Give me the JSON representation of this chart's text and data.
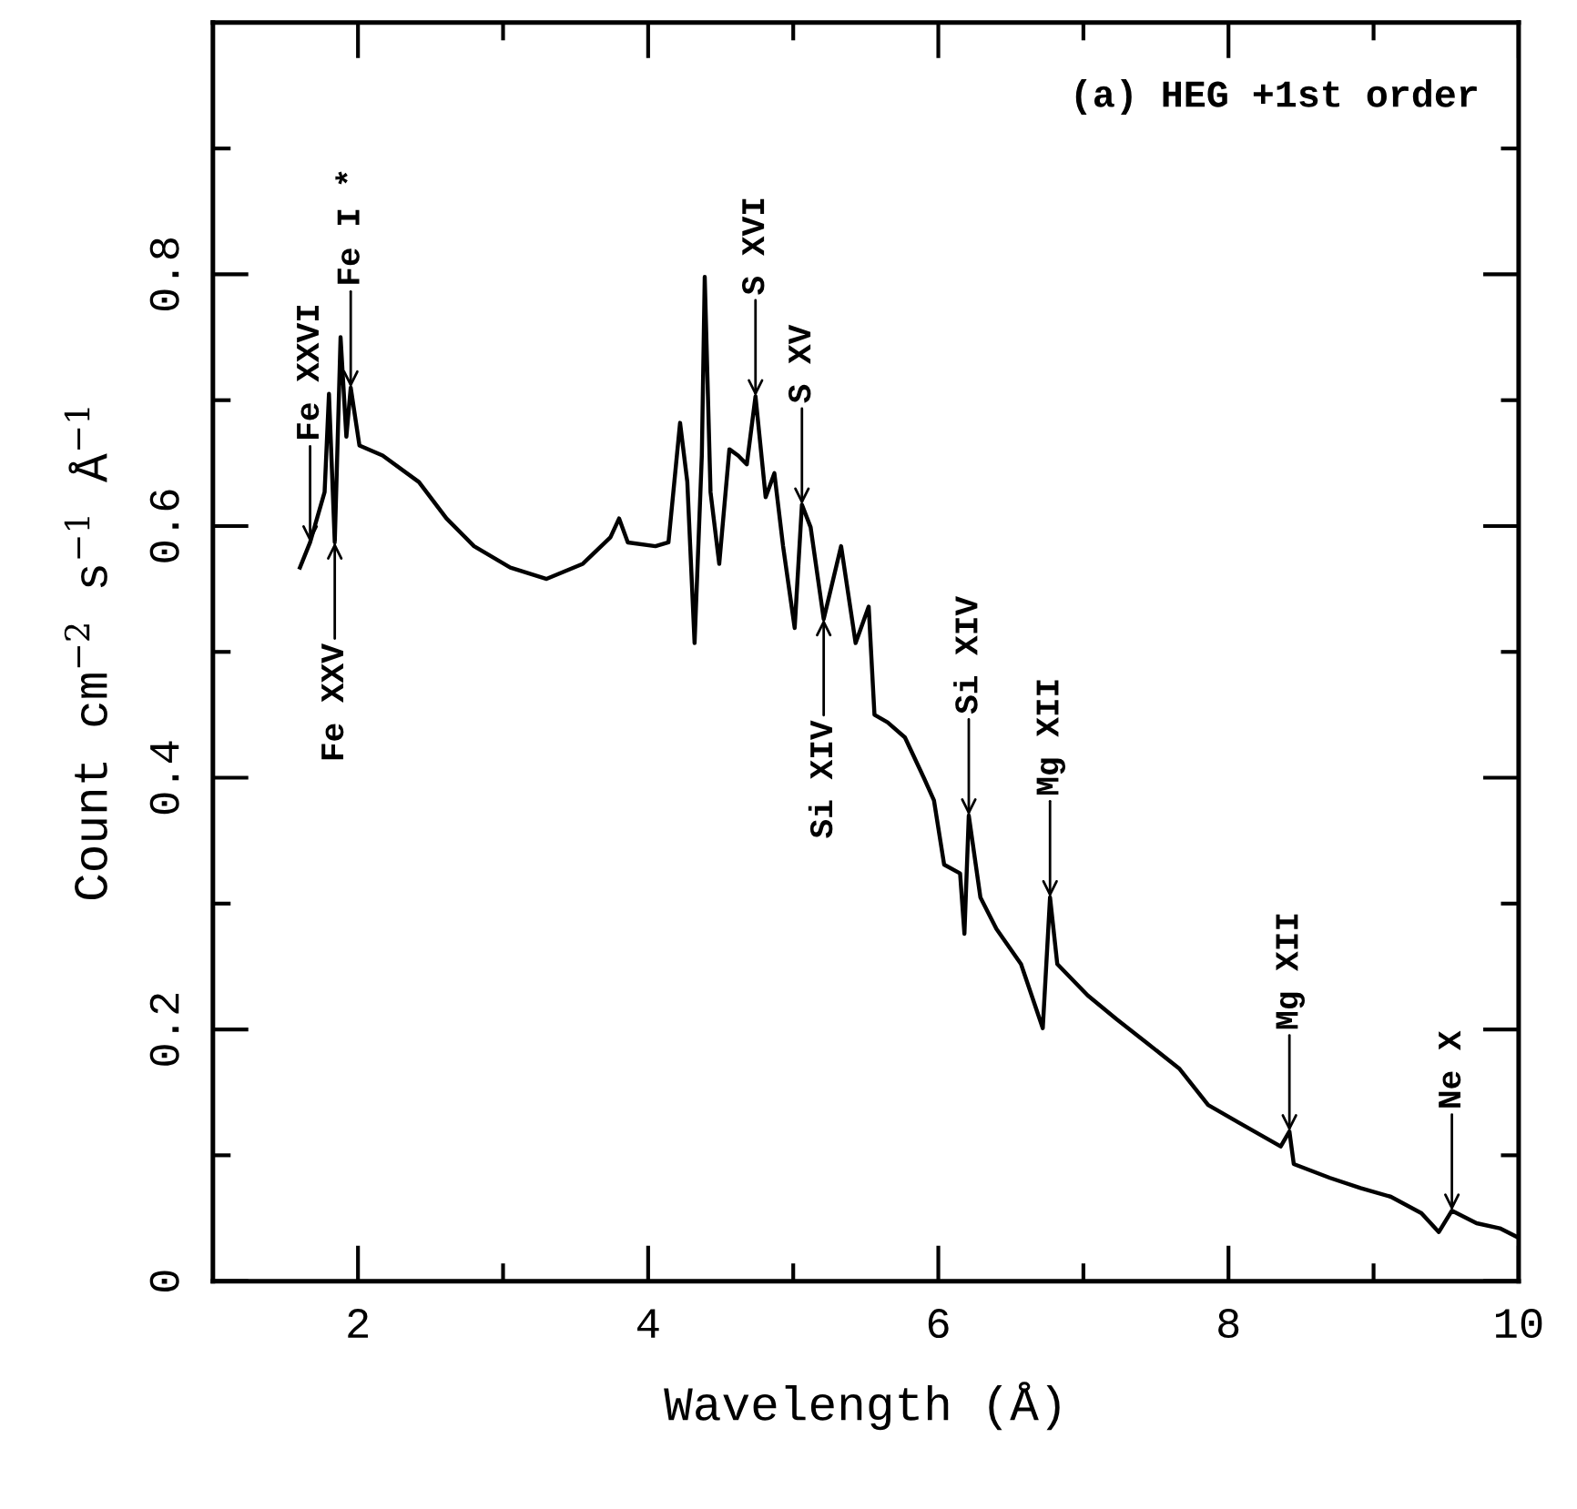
{
  "chart_data": {
    "type": "line",
    "title": "(a) HEG +1st order",
    "xlabel": "Wavelength (Å)",
    "ylabel": "Count cm$^{−2}$ s$^{−1}$ Å$^{−1}$",
    "x": [
      1.6,
      1.67,
      1.77,
      1.8,
      1.84,
      1.88,
      1.92,
      1.95,
      2.01,
      2.17,
      2.42,
      2.61,
      2.8,
      3.05,
      3.3,
      3.55,
      3.74,
      3.8,
      3.86,
      4.05,
      4.14,
      4.22,
      4.27,
      4.32,
      4.37,
      4.39,
      4.43,
      4.49,
      4.56,
      4.62,
      4.68,
      4.74,
      4.81,
      4.87,
      4.93,
      5.01,
      5.06,
      5.12,
      5.21,
      5.33,
      5.43,
      5.52,
      5.56,
      5.65,
      5.77,
      5.9,
      5.97,
      6.04,
      6.15,
      6.18,
      6.21,
      6.29,
      6.4,
      6.57,
      6.72,
      6.77,
      6.82,
      7.03,
      7.23,
      7.44,
      7.66,
      7.86,
      8.07,
      8.36,
      8.42,
      8.45,
      8.7,
      8.91,
      9.12,
      9.33,
      9.45,
      9.54,
      9.71,
      9.87,
      9.99
    ],
    "series": [
      {
        "color": "#000000",
        "values": [
          0.567,
          0.587,
          0.627,
          0.705,
          0.587,
          0.75,
          0.671,
          0.71,
          0.664,
          0.656,
          0.635,
          0.606,
          0.584,
          0.567,
          0.558,
          0.57,
          0.591,
          0.606,
          0.587,
          0.584,
          0.587,
          0.682,
          0.635,
          0.507,
          0.656,
          0.798,
          0.627,
          0.57,
          0.661,
          0.656,
          0.649,
          0.703,
          0.623,
          0.642,
          0.584,
          0.519,
          0.617,
          0.599,
          0.526,
          0.584,
          0.507,
          0.536,
          0.45,
          0.444,
          0.432,
          0.4,
          0.382,
          0.331,
          0.324,
          0.276,
          0.37,
          0.305,
          0.28,
          0.252,
          0.201,
          0.305,
          0.252,
          0.227,
          0.208,
          0.189,
          0.169,
          0.14,
          0.126,
          0.107,
          0.119,
          0.093,
          0.082,
          0.074,
          0.067,
          0.054,
          0.039,
          0.056,
          0.046,
          0.042,
          0.035
        ]
      }
    ],
    "xlim": [
      1,
      10
    ],
    "ylim": [
      0,
      1.0
    ],
    "xticks": [
      2,
      4,
      6,
      8,
      10,
      {
        "value": 3,
        "label": null
      },
      {
        "value": 5,
        "label": null
      },
      {
        "value": 7,
        "label": null
      },
      {
        "value": 9,
        "label": null
      }
    ],
    "yticks": [
      0,
      0.2,
      0.4,
      0.6,
      0.8,
      {
        "value": 0.1,
        "label": null
      },
      {
        "value": 0.3,
        "label": null
      },
      {
        "value": 0.5,
        "label": null
      },
      {
        "value": 0.7,
        "label": null
      },
      {
        "value": 0.9,
        "label": null
      }
    ],
    "grid": false,
    "legend": false,
    "marker": "none",
    "line_style": "solid",
    "annotations": [
      {
        "text": "Fe XXVI",
        "x": 1.67,
        "y": 0.587
      },
      {
        "text": "Fe XXV",
        "x": 1.84,
        "y": 0.587
      },
      {
        "text": "Fe I *",
        "x": 1.95,
        "y": 0.71
      },
      {
        "text": "S XVI",
        "x": 4.74,
        "y": 0.703
      },
      {
        "text": "S XV",
        "x": 5.06,
        "y": 0.617
      },
      {
        "text": "Si XIV",
        "x": 5.21,
        "y": 0.526
      },
      {
        "text": "Si XIV",
        "x": 6.21,
        "y": 0.37
      },
      {
        "text": "Mg XII",
        "x": 6.77,
        "y": 0.305
      },
      {
        "text": "Mg XII",
        "x": 8.42,
        "y": 0.119
      },
      {
        "text": "Ne X",
        "x": 9.54,
        "y": 0.056
      }
    ]
  }
}
